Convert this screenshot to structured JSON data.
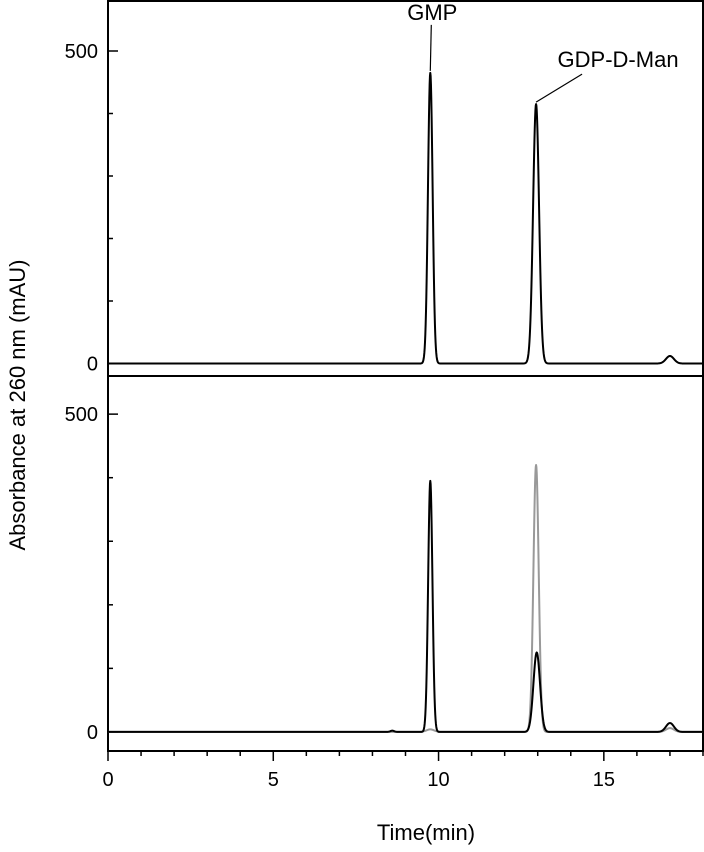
{
  "chart_data": {
    "type": "line",
    "xlabel": "Time(min)",
    "ylabel": "Absorbance at 260 nm (mAU)",
    "xlim": [
      0,
      18
    ],
    "x_ticks": [
      0,
      5,
      10,
      15
    ],
    "x_tick_labels": [
      "0",
      "5",
      "10",
      "15"
    ],
    "panels": [
      {
        "position": "top",
        "ylim": [
          -20,
          580
        ],
        "y_ticks": [
          0,
          500
        ],
        "y_tick_labels": [
          "0",
          "500"
        ],
        "series": [
          {
            "color": "#000000",
            "peaks": [
              {
                "x": 9.75,
                "height": 465,
                "width": 0.07
              },
              {
                "x": 12.95,
                "height": 415,
                "width": 0.09
              },
              {
                "x": 17.0,
                "height": 12,
                "width": 0.12
              }
            ]
          }
        ],
        "annotations": [
          {
            "text": "GMP",
            "x": 9.75,
            "y": 465
          },
          {
            "text": "GDP-D-Man",
            "x": 12.95,
            "y": 415
          }
        ]
      },
      {
        "position": "bottom",
        "ylim": [
          -30,
          560
        ],
        "y_ticks": [
          0,
          500
        ],
        "y_tick_labels": [
          "0",
          "500"
        ],
        "series": [
          {
            "color": "#999999",
            "peaks": [
              {
                "x": 9.75,
                "height": 4,
                "width": 0.12
              },
              {
                "x": 12.95,
                "height": 420,
                "width": 0.08
              },
              {
                "x": 17.0,
                "height": 6,
                "width": 0.12
              }
            ]
          },
          {
            "color": "#000000",
            "peaks": [
              {
                "x": 8.6,
                "height": 2,
                "width": 0.06
              },
              {
                "x": 9.75,
                "height": 395,
                "width": 0.065
              },
              {
                "x": 12.97,
                "height": 125,
                "width": 0.1
              },
              {
                "x": 17.0,
                "height": 14,
                "width": 0.12
              }
            ]
          }
        ],
        "annotations": []
      }
    ]
  }
}
